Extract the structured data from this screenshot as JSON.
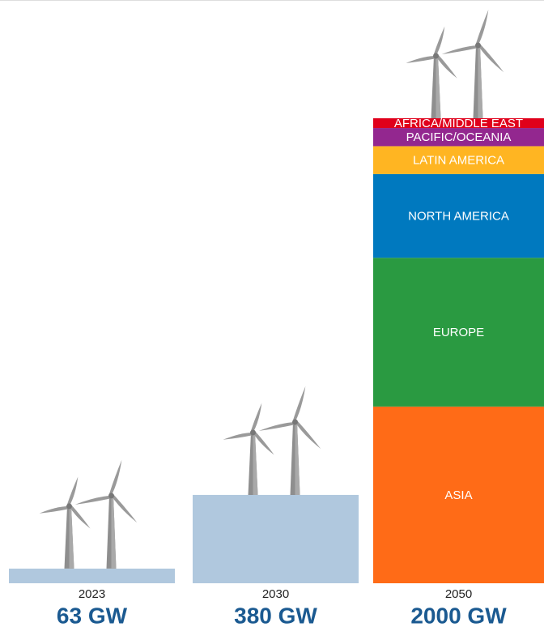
{
  "chart_data": {
    "type": "bar",
    "categories": [
      "2023",
      "2030",
      "2050"
    ],
    "values": [
      63,
      380,
      2000
    ],
    "value_labels": [
      "63 GW",
      "380 GW",
      "2000 GW"
    ],
    "color": "#b0c8de",
    "segments": [
      {
        "name": "ASIA",
        "value": 760,
        "color": "#ff6b17"
      },
      {
        "name": "EUROPE",
        "value": 640,
        "color": "#2a9a41"
      },
      {
        "name": "NORTH AMERICA",
        "value": 360,
        "color": "#0079bf"
      },
      {
        "name": "LATIN AMERICA",
        "value": 120,
        "color": "#ffb522"
      },
      {
        "name": "PACIFIC/OCEANIA",
        "value": 78,
        "color": "#93278f"
      },
      {
        "name": "AFRICA/MIDDLE EAST",
        "value": 42,
        "color": "#e0001b"
      }
    ]
  }
}
